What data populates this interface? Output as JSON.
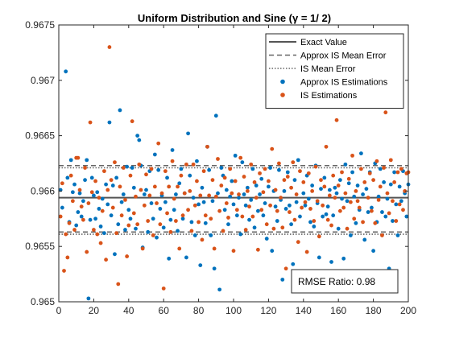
{
  "chart_data": {
    "type": "scatter",
    "title": "Uniform Distribution and Sine (γ = 1/ 2)",
    "xlabel": "",
    "ylabel": "",
    "xlim": [
      0,
      200
    ],
    "ylim": [
      0.965,
      0.9675
    ],
    "x_ticks": [
      0,
      20,
      40,
      60,
      80,
      100,
      120,
      140,
      160,
      180,
      200
    ],
    "x_tick_labels": [
      "0",
      "20",
      "40",
      "60",
      "80",
      "100",
      "120",
      "140",
      "160",
      "180",
      "200"
    ],
    "y_ticks": [
      0.965,
      0.9655,
      0.966,
      0.9665,
      0.967,
      0.9675
    ],
    "y_tick_labels": [
      "0.965",
      "0.9655",
      "0.966",
      "0.9665",
      "0.967",
      "0.9675"
    ],
    "grid": false,
    "legend_position": "top-right",
    "lines": [
      {
        "name": "Exact Value",
        "y": 0.96594,
        "style": "solid",
        "color": "#555555"
      },
      {
        "name": "Approx IS Mean Error",
        "y_upper": 0.96623,
        "y_lower": 0.96563,
        "style": "dashed",
        "color": "#666666"
      },
      {
        "name": "IS Mean Error",
        "y_upper": 0.96621,
        "y_lower": 0.96561,
        "style": "dotted",
        "color": "#666666"
      }
    ],
    "series": [
      {
        "name": "Approx IS Estimations",
        "color": "#0072BD",
        "x": [
          1,
          2,
          4,
          5,
          6,
          7,
          8,
          9,
          10,
          11,
          12,
          13,
          14,
          15,
          16,
          17,
          18,
          19,
          20,
          21,
          22,
          23,
          24,
          25,
          26,
          27,
          28,
          29,
          30,
          31,
          32,
          33,
          34,
          35,
          36,
          37,
          38,
          39,
          40,
          41,
          42,
          43,
          44,
          45,
          46,
          47,
          48,
          49,
          50,
          51,
          52,
          53,
          54,
          55,
          56,
          57,
          58,
          59,
          60,
          61,
          62,
          63,
          64,
          65,
          66,
          67,
          68,
          69,
          70,
          71,
          72,
          73,
          74,
          75,
          76,
          77,
          78,
          79,
          80,
          81,
          82,
          83,
          84,
          85,
          86,
          87,
          88,
          89,
          90,
          91,
          92,
          93,
          94,
          95,
          96,
          97,
          98,
          99,
          100,
          101,
          102,
          103,
          104,
          105,
          106,
          107,
          108,
          109,
          110,
          111,
          112,
          113,
          114,
          115,
          116,
          117,
          118,
          119,
          120,
          121,
          122,
          123,
          124,
          125,
          126,
          127,
          128,
          129,
          130,
          131,
          132,
          133,
          134,
          135,
          136,
          137,
          138,
          139,
          140,
          141,
          142,
          143,
          144,
          145,
          146,
          147,
          148,
          149,
          150,
          151,
          152,
          153,
          154,
          155,
          156,
          157,
          158,
          159,
          160,
          161,
          162,
          163,
          164,
          165,
          166,
          167,
          168,
          169,
          170,
          171,
          172,
          173,
          174,
          175,
          176,
          177,
          178,
          179,
          180,
          181,
          182,
          183,
          184,
          185,
          186,
          187,
          188,
          189,
          190,
          191,
          192,
          193,
          194,
          195,
          196,
          197,
          198,
          199,
          200
        ],
        "y": [
          0.96601,
          0.96585,
          0.96708,
          0.96612,
          0.96572,
          0.96628,
          0.96599,
          0.96606,
          0.96569,
          0.96581,
          0.96598,
          0.96577,
          0.96591,
          0.9661,
          0.96628,
          0.96503,
          0.96574,
          0.96612,
          0.96596,
          0.96575,
          0.96599,
          0.96584,
          0.96568,
          0.96593,
          0.96562,
          0.96606,
          0.96588,
          0.96662,
          0.96578,
          0.96605,
          0.96543,
          0.96612,
          0.9657,
          0.96673,
          0.9659,
          0.96597,
          0.96565,
          0.96622,
          0.96583,
          0.96575,
          0.96621,
          0.96603,
          0.96566,
          0.9665,
          0.96646,
          0.96623,
          0.96549,
          0.96597,
          0.96601,
          0.96563,
          0.96618,
          0.96589,
          0.96575,
          0.96633,
          0.96558,
          0.96619,
          0.96584,
          0.96596,
          0.96567,
          0.9659,
          0.96612,
          0.96539,
          0.96574,
          0.96637,
          0.96583,
          0.96597,
          0.96564,
          0.96607,
          0.9662,
          0.96575,
          0.96598,
          0.9654,
          0.96652,
          0.96614,
          0.96572,
          0.96594,
          0.9656,
          0.96627,
          0.96588,
          0.96533,
          0.96603,
          0.9659,
          0.96571,
          0.9664,
          0.96619,
          0.9656,
          0.96591,
          0.9653,
          0.96668,
          0.96598,
          0.96511,
          0.96621,
          0.96614,
          0.96583,
          0.96601,
          0.9657,
          0.96595,
          0.96609,
          0.96588,
          0.96632,
          0.96578,
          0.96594,
          0.96561,
          0.96626,
          0.96597,
          0.96587,
          0.96603,
          0.96574,
          0.96592,
          0.9662,
          0.96567,
          0.96605,
          0.96582,
          0.96597,
          0.96611,
          0.96578,
          0.96589,
          0.96557,
          0.96604,
          0.96621,
          0.96546,
          0.966,
          0.96586,
          0.96573,
          0.96619,
          0.96592,
          0.9652,
          0.966,
          0.96584,
          0.96617,
          0.96587,
          0.9657,
          0.96534,
          0.9661,
          0.9659,
          0.96628,
          0.96577,
          0.96526,
          0.96598,
          0.96587,
          0.96614,
          0.96593,
          0.96572,
          0.96605,
          0.96568,
          0.96623,
          0.96589,
          0.9654,
          0.96602,
          0.96577,
          0.96612,
          0.96579,
          0.96586,
          0.96601,
          0.96536,
          0.96578,
          0.96603,
          0.96598,
          0.96566,
          0.9661,
          0.96593,
          0.96539,
          0.96624,
          0.96591,
          0.96607,
          0.9656,
          0.96617,
          0.96595,
          0.96571,
          0.96605,
          0.96583,
          0.96634,
          0.96597,
          0.96556,
          0.96602,
          0.96581,
          0.96617,
          0.96585,
          0.96546,
          0.96625,
          0.96572,
          0.96595,
          0.9662,
          0.96581,
          0.96608,
          0.96577,
          0.96593,
          0.9653,
          0.96606,
          0.96573,
          0.96617,
          0.96588,
          0.9656,
          0.96604,
          0.96591,
          0.96618,
          0.96598,
          0.96577,
          0.96606
        ]
      },
      {
        "name": "IS Estimations",
        "color": "#D95319",
        "x": [
          1,
          2,
          3,
          4,
          5,
          6,
          7,
          8,
          9,
          10,
          11,
          12,
          13,
          14,
          15,
          16,
          17,
          18,
          19,
          20,
          21,
          22,
          23,
          24,
          25,
          26,
          27,
          28,
          29,
          30,
          31,
          32,
          33,
          34,
          35,
          36,
          37,
          38,
          39,
          40,
          41,
          42,
          43,
          44,
          45,
          46,
          47,
          48,
          49,
          50,
          51,
          52,
          53,
          54,
          55,
          56,
          57,
          58,
          59,
          60,
          61,
          62,
          63,
          64,
          65,
          66,
          67,
          68,
          69,
          70,
          71,
          72,
          73,
          74,
          75,
          76,
          77,
          78,
          79,
          80,
          81,
          82,
          83,
          84,
          85,
          86,
          87,
          88,
          89,
          90,
          91,
          92,
          93,
          94,
          95,
          96,
          97,
          98,
          99,
          100,
          101,
          102,
          103,
          104,
          105,
          106,
          107,
          108,
          109,
          110,
          111,
          112,
          113,
          114,
          115,
          116,
          117,
          118,
          119,
          120,
          121,
          122,
          123,
          124,
          125,
          126,
          127,
          128,
          129,
          130,
          131,
          132,
          133,
          134,
          135,
          136,
          137,
          138,
          139,
          140,
          141,
          142,
          143,
          144,
          145,
          146,
          147,
          148,
          149,
          150,
          151,
          152,
          153,
          154,
          155,
          156,
          157,
          158,
          159,
          160,
          161,
          162,
          163,
          164,
          165,
          166,
          167,
          168,
          169,
          170,
          171,
          172,
          173,
          174,
          175,
          176,
          177,
          178,
          179,
          180,
          181,
          182,
          183,
          184,
          185,
          186,
          187,
          188,
          189,
          190,
          191,
          192,
          193,
          194,
          195,
          196,
          197,
          198,
          199,
          200
        ],
        "y": [
          0.96577,
          0.96607,
          0.96528,
          0.96561,
          0.9654,
          0.96571,
          0.96614,
          0.96591,
          0.96565,
          0.9663,
          0.9663,
          0.96601,
          0.96586,
          0.96574,
          0.96621,
          0.96545,
          0.96589,
          0.96662,
          0.96599,
          0.96565,
          0.96609,
          0.96561,
          0.96594,
          0.96553,
          0.96582,
          0.96618,
          0.96538,
          0.96601,
          0.9673,
          0.9661,
          0.96585,
          0.96626,
          0.96562,
          0.96516,
          0.96604,
          0.96578,
          0.96621,
          0.96592,
          0.96541,
          0.96569,
          0.96614,
          0.96663,
          0.9658,
          0.96595,
          0.9657,
          0.96624,
          0.96601,
          0.96548,
          0.96587,
          0.96615,
          0.96573,
          0.96596,
          0.9662,
          0.9656,
          0.96604,
          0.96589,
          0.96643,
          0.9657,
          0.96598,
          0.96512,
          0.96618,
          0.9658,
          0.96604,
          0.96563,
          0.96627,
          0.96593,
          0.96573,
          0.96604,
          0.96548,
          0.96614,
          0.96578,
          0.96598,
          0.96624,
          0.96583,
          0.966,
          0.96564,
          0.96624,
          0.96587,
          0.96609,
          0.96572,
          0.96596,
          0.96556,
          0.96618,
          0.96578,
          0.9664,
          0.96596,
          0.96575,
          0.9661,
          0.96548,
          0.96595,
          0.96629,
          0.96582,
          0.96605,
          0.96564,
          0.96612,
          0.96589,
          0.96576,
          0.9662,
          0.96598,
          0.96546,
          0.96609,
          0.96583,
          0.96597,
          0.9663,
          0.96577,
          0.96613,
          0.96565,
          0.966,
          0.96586,
          0.96624,
          0.96577,
          0.96608,
          0.96594,
          0.96547,
          0.96616,
          0.96583,
          0.96599,
          0.9662,
          0.9657,
          0.96609,
          0.96587,
          0.96638,
          0.96566,
          0.96601,
          0.96582,
          0.96625,
          0.96594,
          0.96567,
          0.9661,
          0.9653,
          0.96613,
          0.96581,
          0.96603,
          0.96626,
          0.96574,
          0.96597,
          0.96554,
          0.96618,
          0.96585,
          0.96608,
          0.9659,
          0.96545,
          0.96616,
          0.96584,
          0.966,
          0.96573,
          0.96622,
          0.96591,
          0.96559,
          0.9661,
          0.96587,
          0.96604,
          0.9664,
          0.96574,
          0.96596,
          0.96569,
          0.96614,
          0.96594,
          0.96664,
          0.96605,
          0.96582,
          0.96617,
          0.96585,
          0.96598,
          0.96566,
          0.96611,
          0.9659,
          0.96632,
          0.96575,
          0.966,
          0.96591,
          0.96585,
          0.9662,
          0.96572,
          0.96608,
          0.96524,
          0.96594,
          0.96616,
          0.96582,
          0.9661,
          0.96571,
          0.96627,
          0.96592,
          0.96604,
          0.9656,
          0.96621,
          0.96671,
          0.96598,
          0.9658,
          0.96628,
          0.96591,
          0.96608,
          0.96573,
          0.96617,
          0.96588,
          0.9662,
          0.96583,
          0.966,
          0.96616,
          0.96617
        ]
      }
    ],
    "legend": [
      {
        "label": "Exact Value",
        "kind": "solid-line",
        "color": "#555555"
      },
      {
        "label": "Approx IS Mean Error",
        "kind": "dashed-line",
        "color": "#666666"
      },
      {
        "label": "IS Mean Error",
        "kind": "dotted-line",
        "color": "#666666"
      },
      {
        "label": "Approx IS Estimations",
        "kind": "marker",
        "color": "#0072BD"
      },
      {
        "label": "IS Estimations",
        "kind": "marker",
        "color": "#D95319"
      }
    ],
    "annotation": {
      "text": "RMSE Ratio: 0.98"
    }
  }
}
